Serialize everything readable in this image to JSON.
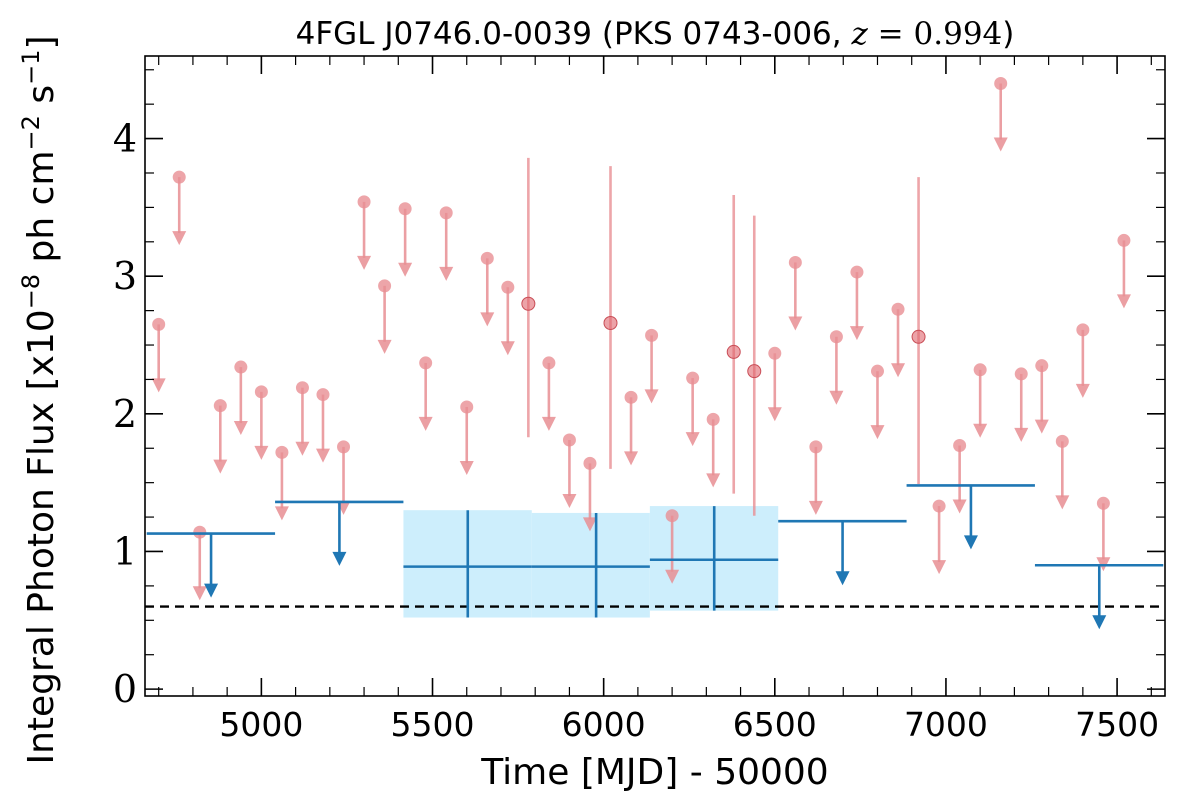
{
  "chart_data": {
    "type": "scatter",
    "title": {
      "prefix": "4FGL J0746.0-0039 (PKS 0743-006, ",
      "z_symbol": "z",
      "equals": " = ",
      "z_value": "0.994",
      "suffix": ")"
    },
    "xlabel": "Time [MJD] - 50000",
    "ylabel": {
      "text": "Integral Photon Flux [x10",
      "exp1": "−8",
      "mid": " ph cm",
      "exp2": "−2",
      "mid2": " s",
      "exp3": "−1",
      "end": "]"
    },
    "xlim": [
      4660,
      7640
    ],
    "ylim": [
      -0.05,
      4.6
    ],
    "x_ticks": [
      5000,
      5500,
      6000,
      6500,
      7000,
      7500
    ],
    "y_ticks": [
      0,
      1,
      2,
      3,
      4
    ],
    "grid": false,
    "reference_line": {
      "y": 0.6,
      "style": "dashed",
      "color": "#000000"
    },
    "colors": {
      "fine_bins": "#e88e93",
      "coarse_bins": "#1f77b4",
      "band": "#cdeefc"
    },
    "fine_bins_upper_limits": [
      {
        "x": 4700,
        "y": 2.65
      },
      {
        "x": 4760,
        "y": 3.72
      },
      {
        "x": 4820,
        "y": 1.14
      },
      {
        "x": 4880,
        "y": 2.06
      },
      {
        "x": 4940,
        "y": 2.34
      },
      {
        "x": 5000,
        "y": 2.16
      },
      {
        "x": 5060,
        "y": 1.72
      },
      {
        "x": 5120,
        "y": 2.19
      },
      {
        "x": 5180,
        "y": 2.14
      },
      {
        "x": 5240,
        "y": 1.76
      },
      {
        "x": 5300,
        "y": 3.54
      },
      {
        "x": 5360,
        "y": 2.93
      },
      {
        "x": 5420,
        "y": 3.49
      },
      {
        "x": 5480,
        "y": 2.37
      },
      {
        "x": 5540,
        "y": 3.46
      },
      {
        "x": 5600,
        "y": 2.05
      },
      {
        "x": 5660,
        "y": 3.13
      },
      {
        "x": 5720,
        "y": 2.92
      },
      {
        "x": 5840,
        "y": 2.37
      },
      {
        "x": 5900,
        "y": 1.81
      },
      {
        "x": 5960,
        "y": 1.64
      },
      {
        "x": 6080,
        "y": 2.12
      },
      {
        "x": 6140,
        "y": 2.57
      },
      {
        "x": 6200,
        "y": 1.26
      },
      {
        "x": 6260,
        "y": 2.26
      },
      {
        "x": 6320,
        "y": 1.96
      },
      {
        "x": 6500,
        "y": 2.44
      },
      {
        "x": 6560,
        "y": 3.1
      },
      {
        "x": 6620,
        "y": 1.76
      },
      {
        "x": 6680,
        "y": 2.56
      },
      {
        "x": 6740,
        "y": 3.03
      },
      {
        "x": 6800,
        "y": 2.31
      },
      {
        "x": 6860,
        "y": 2.76
      },
      {
        "x": 6980,
        "y": 1.33
      },
      {
        "x": 7040,
        "y": 1.77
      },
      {
        "x": 7100,
        "y": 2.32
      },
      {
        "x": 7160,
        "y": 4.4
      },
      {
        "x": 7220,
        "y": 2.29
      },
      {
        "x": 7280,
        "y": 2.35
      },
      {
        "x": 7340,
        "y": 1.8
      },
      {
        "x": 7400,
        "y": 2.61
      },
      {
        "x": 7460,
        "y": 1.35
      },
      {
        "x": 7520,
        "y": 3.26
      }
    ],
    "fine_bins_detections": [
      {
        "x": 5780,
        "y": 2.8,
        "ylow": 1.83,
        "yhigh": 3.86
      },
      {
        "x": 6020,
        "y": 2.66,
        "ylow": 1.6,
        "yhigh": 3.8
      },
      {
        "x": 6380,
        "y": 2.45,
        "ylow": 1.42,
        "yhigh": 3.59
      },
      {
        "x": 6440,
        "y": 2.31,
        "ylow": 1.26,
        "yhigh": 3.44
      },
      {
        "x": 6920,
        "y": 2.56,
        "ylow": 1.49,
        "yhigh": 3.72
      }
    ],
    "coarse_bins_upper_limits": [
      {
        "x": 4853,
        "xlow": 4665,
        "xhigh": 5040,
        "y": 1.13
      },
      {
        "x": 5228,
        "xlow": 5040,
        "xhigh": 5415,
        "y": 1.36
      },
      {
        "x": 6698,
        "xlow": 6510,
        "xhigh": 6885,
        "y": 1.22
      },
      {
        "x": 7073,
        "xlow": 6885,
        "xhigh": 7260,
        "y": 1.48
      },
      {
        "x": 7448,
        "xlow": 7260,
        "xhigh": 7635,
        "y": 0.9
      }
    ],
    "coarse_bins_detections": [
      {
        "x": 5603,
        "xlow": 5415,
        "xhigh": 5790,
        "y": 0.89,
        "ylow": 0.52,
        "yhigh": 1.3
      },
      {
        "x": 5978,
        "xlow": 5790,
        "xhigh": 6135,
        "y": 0.89,
        "ylow": 0.52,
        "yhigh": 1.28
      },
      {
        "x": 6323,
        "xlow": 6135,
        "xhigh": 6510,
        "y": 0.94,
        "ylow": 0.57,
        "yhigh": 1.33
      }
    ]
  }
}
